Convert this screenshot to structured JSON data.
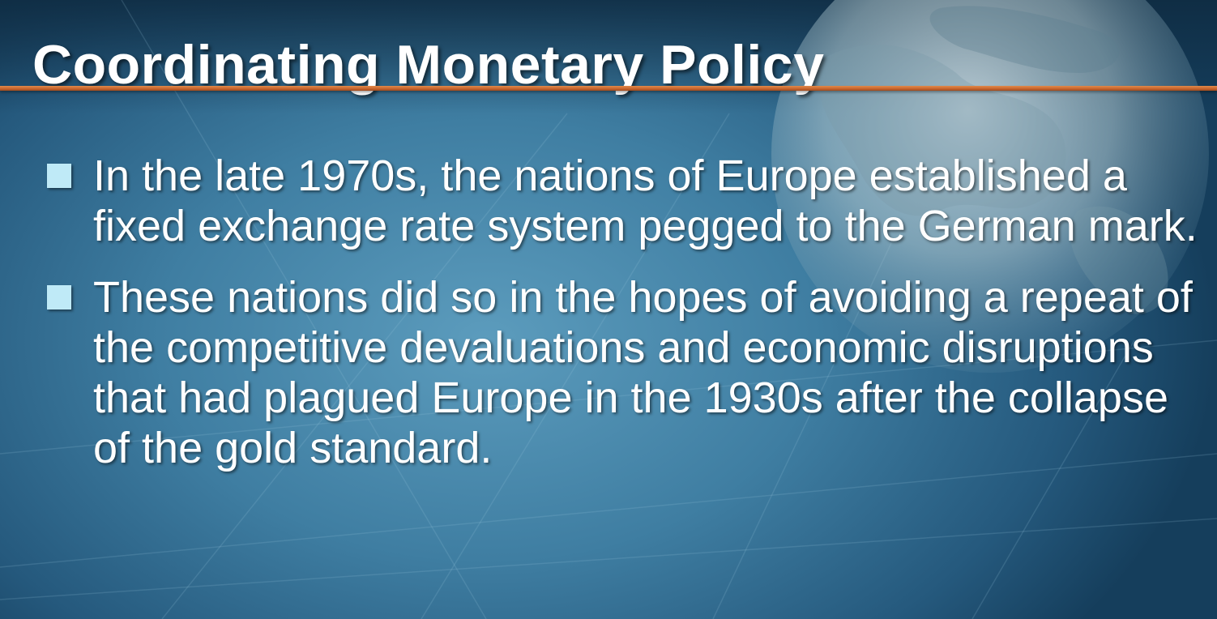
{
  "slide": {
    "title": "Coordinating Monetary Policy",
    "bullets": [
      {
        "text": "In the late 1970s, the nations of Europe established a fixed exchange rate system pegged to the German mark."
      },
      {
        "text": "These nations did so in the hopes of avoiding a repeat of the competitive devaluations and economic disruptions that had plagued Europe in the 1930s after the collapse of the gold standard."
      }
    ]
  },
  "colors": {
    "background": "#3f7ea2",
    "title_rule": "#c8642c",
    "bullet_marker": "#bfeaf7",
    "text": "#ffffff"
  },
  "icons": {
    "bullet_marker": "square-bullet-icon",
    "background_decoration": "globe-icon"
  }
}
